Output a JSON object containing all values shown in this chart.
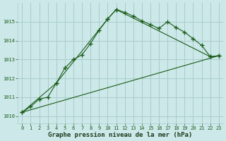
{
  "bg_color": "#cce8e8",
  "grid_color": "#aacccc",
  "line_color": "#1a5c1a",
  "title": "Graphe pression niveau de la mer (hPa)",
  "xlim": [
    -0.5,
    23.5
  ],
  "ylim": [
    1009.6,
    1016.0
  ],
  "yticks": [
    1010,
    1011,
    1012,
    1013,
    1014,
    1015
  ],
  "xticks": [
    0,
    1,
    2,
    3,
    4,
    5,
    6,
    7,
    8,
    9,
    10,
    11,
    12,
    13,
    14,
    15,
    16,
    17,
    18,
    19,
    20,
    21,
    22,
    23
  ],
  "series1_x": [
    0,
    1,
    2,
    3,
    4,
    5,
    6,
    7,
    8,
    9,
    10,
    11,
    12,
    13,
    14,
    15,
    16,
    17,
    18,
    19,
    20,
    21,
    22,
    23
  ],
  "series1_y": [
    1010.2,
    1010.5,
    1010.9,
    1011.0,
    1011.75,
    1012.55,
    1013.0,
    1013.25,
    1013.85,
    1014.55,
    1015.15,
    1015.65,
    1015.5,
    1015.3,
    1015.05,
    1014.85,
    1014.65,
    1015.0,
    1014.7,
    1014.45,
    1014.1,
    1013.75,
    1013.15,
    1013.2
  ],
  "series2_x": [
    0,
    23
  ],
  "series2_y": [
    1010.2,
    1013.2
  ],
  "series3_x": [
    0,
    4,
    10,
    11,
    22,
    23
  ],
  "series3_y": [
    1010.2,
    1011.75,
    1015.15,
    1015.65,
    1013.15,
    1013.2
  ],
  "title_fontsize": 6.5,
  "tick_fontsize": 5.0
}
